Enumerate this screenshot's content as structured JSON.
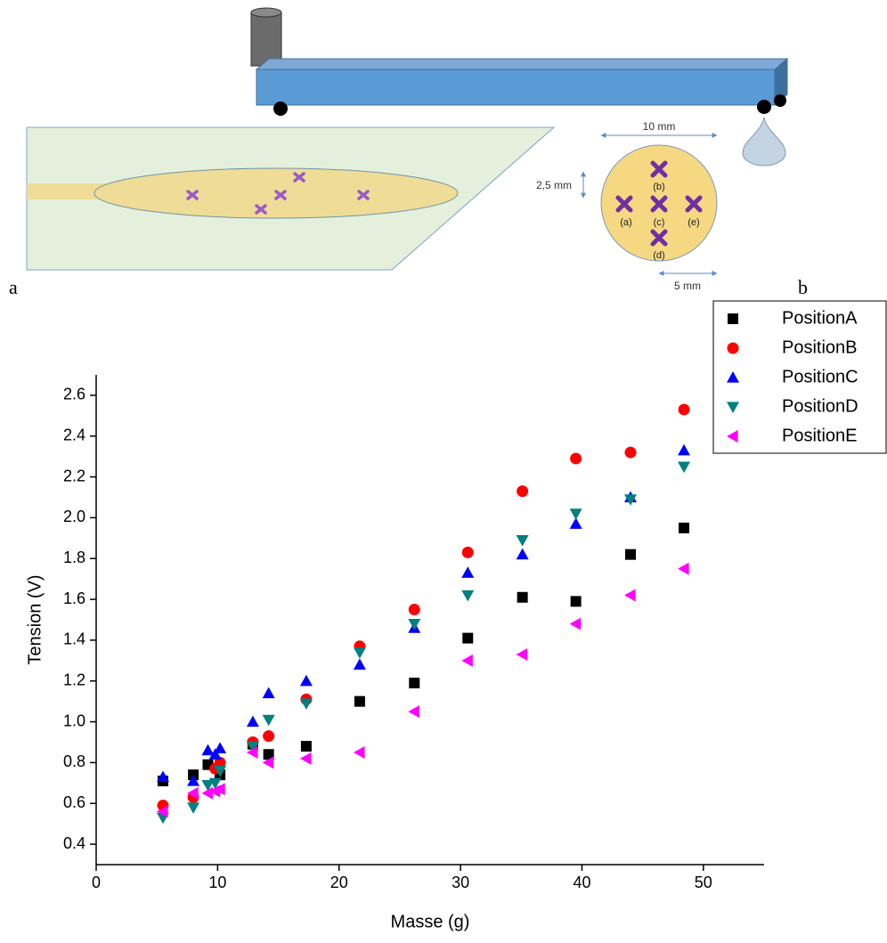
{
  "diagram": {
    "panel_a": "a",
    "panel_b": "b",
    "width_label": "10 mm",
    "spacing_label": "2,5 mm",
    "radius_label": "5 mm",
    "positions": [
      "(a)",
      "(b)",
      "(c)",
      "(d)",
      "(e)"
    ]
  },
  "chart_data": {
    "type": "scatter",
    "x_label": "Masse (g)",
    "y_label": "Tension (V)",
    "xlim": [
      0,
      55
    ],
    "ylim": [
      0.3,
      2.7
    ],
    "xticks": [
      0,
      10,
      20,
      30,
      40,
      50
    ],
    "yticks": [
      0.4,
      0.6,
      0.8,
      {
        "value": 1,
        "label": "1.0"
      },
      1.2,
      1.4,
      1.6,
      1.8,
      {
        "value": 2,
        "label": "2.0"
      },
      2.2,
      2.4,
      2.6
    ],
    "legend": "top-right",
    "series": [
      {
        "name": "PositionA",
        "color": "#000000",
        "marker": "square",
        "x": [
          5.5,
          8,
          9.2,
          10.2,
          12.9,
          14.2,
          17.3,
          21.7,
          26.2,
          30.6,
          35.1,
          39.5,
          44,
          48.4
        ],
        "values": [
          0.71,
          0.74,
          0.79,
          0.74,
          0.89,
          0.84,
          0.88,
          1.1,
          1.19,
          1.41,
          1.61,
          1.59,
          1.82,
          1.95
        ]
      },
      {
        "name": "PositionB",
        "color": "#ff0000",
        "marker": "circle",
        "x": [
          5.5,
          8,
          9.8,
          10.2,
          12.9,
          14.2,
          17.3,
          21.7,
          26.2,
          30.6,
          35.1,
          39.5,
          44,
          48.4
        ],
        "values": [
          0.59,
          0.63,
          0.77,
          0.8,
          0.9,
          0.93,
          1.11,
          1.37,
          1.55,
          1.83,
          2.13,
          2.29,
          2.32,
          2.53
        ]
      },
      {
        "name": "PositionC",
        "color": "#0000ff",
        "marker": "triangle-up",
        "x": [
          5.5,
          8,
          9.2,
          9.8,
          10.2,
          12.9,
          14.2,
          17.3,
          21.7,
          26.2,
          30.6,
          35.1,
          39.5,
          44,
          48.4
        ],
        "values": [
          0.73,
          0.71,
          0.86,
          0.84,
          0.87,
          1.0,
          1.14,
          1.2,
          1.28,
          1.46,
          1.73,
          1.82,
          1.97,
          2.1,
          2.33
        ]
      },
      {
        "name": "PositionD",
        "color": "#008080",
        "marker": "triangle-down",
        "x": [
          5.5,
          8,
          9.2,
          9.8,
          10.2,
          12.9,
          14.2,
          17.3,
          21.7,
          26.2,
          30.6,
          35.1,
          39.5,
          44,
          48.4
        ],
        "values": [
          0.53,
          0.58,
          0.69,
          0.7,
          0.76,
          0.88,
          1.01,
          1.09,
          1.34,
          1.48,
          1.62,
          1.89,
          2.02,
          2.09,
          2.25
        ]
      },
      {
        "name": "PositionE",
        "color": "#ff00ff",
        "marker": "triangle-left",
        "x": [
          5.5,
          8,
          9.2,
          9.8,
          10.2,
          12.9,
          14.2,
          17.3,
          21.7,
          26.2,
          30.6,
          35.1,
          39.5,
          44,
          48.4
        ],
        "values": [
          0.56,
          0.65,
          0.65,
          0.66,
          0.67,
          0.85,
          0.8,
          0.82,
          0.85,
          1.05,
          1.3,
          1.33,
          1.48,
          1.62,
          1.75
        ]
      }
    ]
  }
}
